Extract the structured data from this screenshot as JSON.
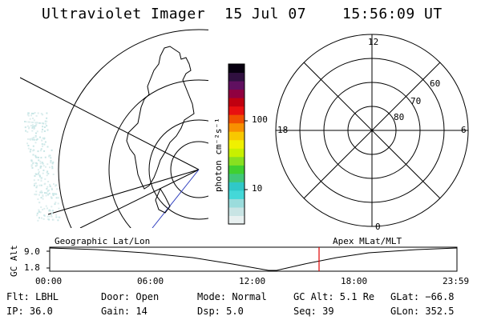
{
  "header": {
    "instrument": "Ultraviolet Imager",
    "date": "15 Jul 07",
    "time": "15:56:09 UT"
  },
  "colorbar": {
    "unit_label": "photon cm⁻²s⁻¹",
    "tick_100": "100",
    "tick_10": "10",
    "colors": [
      "#e8f0f0",
      "#c8e4e4",
      "#9adcdc",
      "#44d8d8",
      "#30c8c8",
      "#40c878",
      "#40d030",
      "#88e020",
      "#c8f000",
      "#f0f000",
      "#f8c800",
      "#f89000",
      "#f05000",
      "#e81010",
      "#c00010",
      "#900040",
      "#601060",
      "#301040",
      "#080010"
    ]
  },
  "polar_plot": {
    "label_top": "12",
    "label_left": "18",
    "label_right": "6",
    "label_bottom": "0",
    "ring_labels": [
      "60",
      "70",
      "80"
    ]
  },
  "timeline": {
    "y_label": "GC Alt",
    "y_ticks": [
      "9.0",
      "1.8"
    ],
    "left_title": "Geographic Lat/Lon",
    "right_title": "Apex MLat/MLT",
    "x_ticks": [
      "00:00",
      "06:00",
      "12:00",
      "18:00",
      "23:59"
    ],
    "current_time_marker": "15:56",
    "current_time_color": "#e00000"
  },
  "status": {
    "flt": "Flt: LBHL",
    "ip": "IP: 36.0",
    "door": "Door: Open",
    "gain": "Gain: 14",
    "mode": "Mode: Normal",
    "dsp": "Dsp:    5.0",
    "gc_alt": "GC Alt: 5.1 Re",
    "seq": "Seq: 39",
    "glat": "GLat: −66.8",
    "glon": "GLon: 352.5"
  }
}
